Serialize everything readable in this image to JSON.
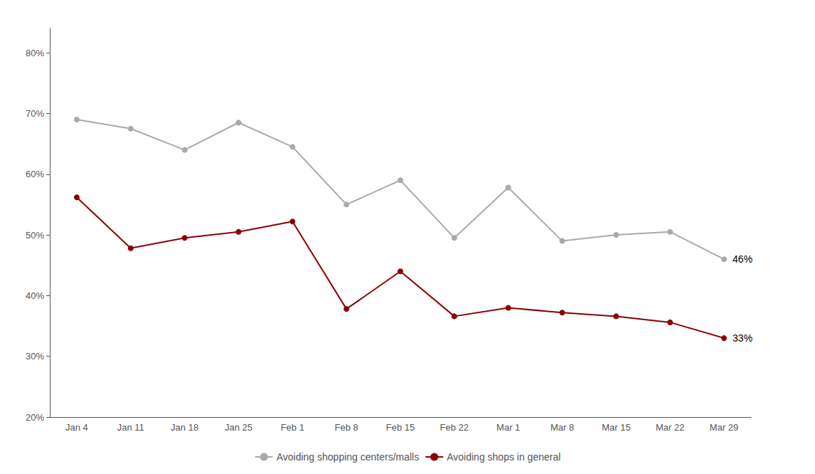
{
  "chart_data": {
    "type": "line",
    "categories": [
      "Jan 4",
      "Jan 11",
      "Jan 18",
      "Jan 25",
      "Feb 1",
      "Feb 8",
      "Feb 15",
      "Feb 22",
      "Mar 1",
      "Mar 8",
      "Mar 15",
      "Mar 22",
      "Mar 29"
    ],
    "series": [
      {
        "name": "Avoiding shopping centers/malls",
        "color": "#aaaaaa",
        "marker": "circle",
        "line_style": "solid",
        "values": [
          0.69,
          0.675,
          0.64,
          0.685,
          0.645,
          0.55,
          0.59,
          0.495,
          0.578,
          0.49,
          0.5,
          0.505,
          0.46
        ]
      },
      {
        "name": "Avoiding shops in general",
        "color": "#8b0000",
        "marker": "circle",
        "line_style": "solid",
        "values": [
          0.562,
          0.478,
          0.495,
          0.505,
          0.522,
          0.378,
          0.44,
          0.366,
          0.38,
          0.372,
          0.366,
          0.356,
          0.33
        ]
      }
    ],
    "annotations": [
      {
        "text": "46%",
        "series": "Avoiding shopping centers/malls"
      },
      {
        "text": "33%",
        "series": "Avoiding shops in general"
      }
    ],
    "ylim": [
      0.2,
      0.84
    ],
    "yticks": [
      {
        "value": 0.2,
        "label": "20%"
      },
      {
        "value": 0.3,
        "label": "30%"
      },
      {
        "value": 0.4,
        "label": "40%"
      },
      {
        "value": 0.5,
        "label": "50%"
      },
      {
        "value": 0.6,
        "label": "60%"
      },
      {
        "value": 0.7,
        "label": "70%"
      },
      {
        "value": 0.8,
        "label": "80%"
      }
    ],
    "grid": false,
    "legend": "bottom"
  }
}
